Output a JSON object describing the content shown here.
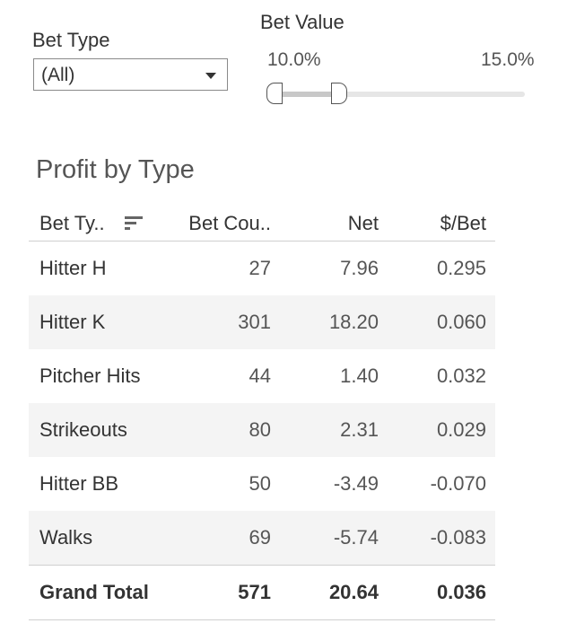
{
  "filters": {
    "bet_type": {
      "label": "Bet Type",
      "selected": "(All)"
    },
    "bet_value": {
      "label": "Bet Value",
      "min_label": "10.0%",
      "max_label": "15.0%"
    }
  },
  "sheet": {
    "title": "Profit by Type"
  },
  "table": {
    "headers": {
      "type": "Bet Ty..",
      "count": "Bet Cou..",
      "net": "Net",
      "per_bet": "$/Bet"
    },
    "rows": [
      {
        "type": "Hitter H",
        "count": "27",
        "net": "7.96",
        "per_bet": "0.295"
      },
      {
        "type": "Hitter K",
        "count": "301",
        "net": "18.20",
        "per_bet": "0.060"
      },
      {
        "type": "Pitcher Hits",
        "count": "44",
        "net": "1.40",
        "per_bet": "0.032"
      },
      {
        "type": "Strikeouts",
        "count": "80",
        "net": "2.31",
        "per_bet": "0.029"
      },
      {
        "type": "Hitter BB",
        "count": "50",
        "net": "-3.49",
        "per_bet": "-0.070"
      },
      {
        "type": "Walks",
        "count": "69",
        "net": "-5.74",
        "per_bet": "-0.083"
      }
    ],
    "total": {
      "type": "Grand Total",
      "count": "571",
      "net": "20.64",
      "per_bet": "0.036"
    }
  }
}
